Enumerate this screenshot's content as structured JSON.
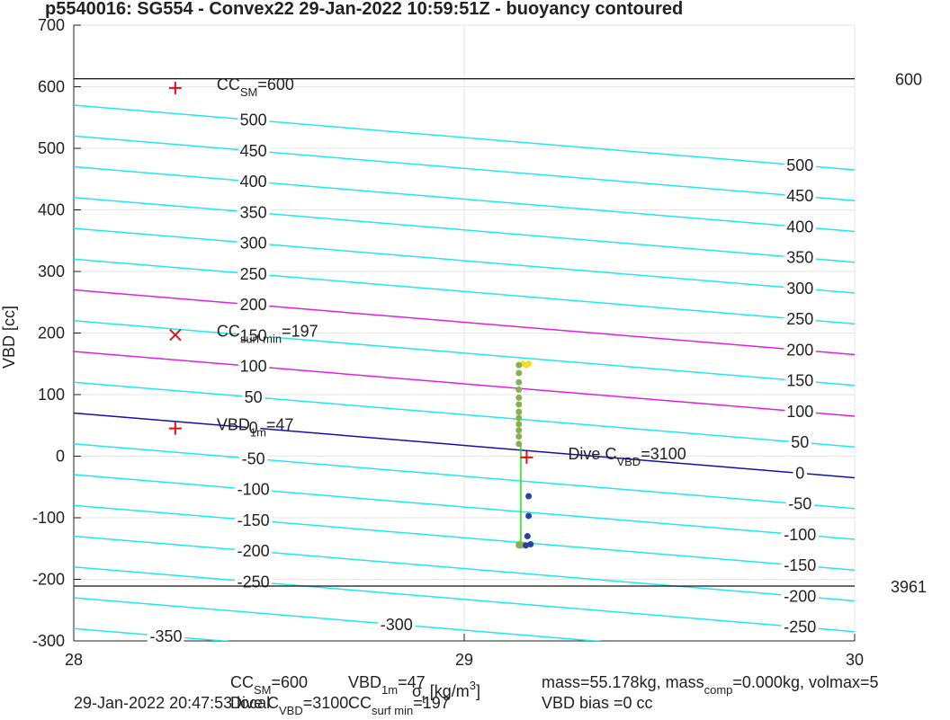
{
  "chart_data": {
    "type": "contour",
    "title": "p5540016: SG554 - Convex22 29-Jan-2022 10:59:51Z - buoyancy contoured",
    "ylabel": "VBD [cc]",
    "xlabel": {
      "parts": [
        {
          "text": "σ"
        },
        {
          "sub": "t"
        },
        {
          "text": " [kg/m"
        },
        {
          "sup": "3"
        },
        {
          "text": "]"
        }
      ]
    },
    "xlim": [
      28,
      30
    ],
    "xticks": [
      28,
      29,
      30
    ],
    "ylim": [
      -300,
      700
    ],
    "yticks": [
      -300,
      -200,
      -100,
      0,
      100,
      200,
      300,
      400,
      500,
      600,
      700
    ],
    "grid": true,
    "contour_x": [
      28,
      30
    ],
    "contours": [
      {
        "level": 500,
        "color": "#1ee8f0",
        "values": [
          570,
          465
        ]
      },
      {
        "level": 450,
        "color": "#1ee8f0",
        "values": [
          520,
          415
        ]
      },
      {
        "level": 400,
        "color": "#1ee8f0",
        "values": [
          470,
          365
        ]
      },
      {
        "level": 350,
        "color": "#1ee8f0",
        "values": [
          420,
          315
        ]
      },
      {
        "level": 300,
        "color": "#1ee8f0",
        "values": [
          370,
          265
        ]
      },
      {
        "level": 250,
        "color": "#1ee8f0",
        "values": [
          320,
          215
        ]
      },
      {
        "level": 200,
        "color": "#e020e0",
        "values": [
          270,
          165
        ]
      },
      {
        "level": 150,
        "color": "#1ee8f0",
        "values": [
          220,
          115
        ]
      },
      {
        "level": 100,
        "color": "#e020e0",
        "values": [
          170,
          65
        ]
      },
      {
        "level": 50,
        "color": "#1ee8f0",
        "values": [
          120,
          15
        ]
      },
      {
        "level": 0,
        "color": "#1010b0",
        "values": [
          70,
          -35
        ]
      },
      {
        "level": -50,
        "color": "#1ee8f0",
        "values": [
          20,
          -85
        ]
      },
      {
        "level": -100,
        "color": "#1ee8f0",
        "values": [
          -30,
          -135
        ]
      },
      {
        "level": -150,
        "color": "#1ee8f0",
        "values": [
          -80,
          -185
        ]
      },
      {
        "level": -200,
        "color": "#1ee8f0",
        "values": [
          -130,
          -235
        ]
      },
      {
        "level": -250,
        "color": "#1ee8f0",
        "values": [
          -180,
          -285
        ]
      },
      {
        "level": -300,
        "color": "#1ee8f0",
        "values": [
          -230,
          -335
        ]
      },
      {
        "level": -350,
        "color": "#1ee8f0",
        "values": [
          -280,
          -385
        ]
      }
    ],
    "ref_lines": [
      {
        "value": 613,
        "label": "600"
      },
      {
        "value": -211,
        "label": "3961"
      }
    ],
    "markers": [
      {
        "x": 28.26,
        "y": 598,
        "symbol": "+",
        "parts": [
          {
            "text": "CC"
          },
          {
            "sub": "SM"
          },
          {
            "text": "=600"
          }
        ]
      },
      {
        "x": 28.26,
        "y": 197,
        "symbol": "x",
        "parts": [
          {
            "text": "CC"
          },
          {
            "sub": "surf min"
          },
          {
            "text": "=197"
          }
        ]
      },
      {
        "x": 28.26,
        "y": 45,
        "symbol": "+",
        "parts": [
          {
            "text": "VBD"
          },
          {
            "sub": "1m"
          },
          {
            "text": "=47"
          }
        ]
      },
      {
        "x": 29.16,
        "y": -2,
        "symbol": "+",
        "parts": [
          {
            "text": "Dive C"
          },
          {
            "sub": "VBD"
          },
          {
            "text": "=3100"
          }
        ]
      }
    ],
    "profile_line": {
      "color": "#22dd22",
      "x": [
        29.145,
        29.145
      ],
      "values": [
        20,
        -145
      ]
    },
    "points": [
      {
        "color": "#f0e020",
        "x": [
          29.15,
          29.16,
          29.165
        ],
        "values": [
          150,
          148,
          150
        ]
      },
      {
        "color": "#86b14e",
        "x": [
          29.14,
          29.14,
          29.14,
          29.14,
          29.14,
          29.14,
          29.14,
          29.14,
          29.14,
          29.14,
          29.14,
          29.14,
          29.14,
          29.14,
          29.145,
          29.15
        ],
        "values": [
          148,
          135,
          120,
          108,
          95,
          84,
          72,
          62,
          52,
          42,
          32,
          20,
          -143,
          -145,
          -145,
          -144
        ]
      },
      {
        "color": "#2b3fa8",
        "x": [
          29.165,
          29.165,
          29.162,
          29.17,
          29.158
        ],
        "values": [
          -65,
          -97,
          -130,
          -143,
          -145
        ]
      }
    ],
    "footer": [
      {
        "parts": [
          {
            "text": "CC"
          },
          {
            "sub": "SM"
          },
          {
            "text": "=600"
          }
        ]
      },
      {
        "parts": [
          {
            "text": "VBD"
          },
          {
            "sub": "1m"
          },
          {
            "text": "=47"
          }
        ]
      },
      {
        "parts": [
          {
            "text": "mass=55.178kg, mass"
          },
          {
            "sub": "comp"
          },
          {
            "text": "=0.000kg, volmax=5"
          }
        ]
      },
      {
        "parts": [
          {
            "text": "29-Jan-2022 20:47:53 local"
          }
        ]
      },
      {
        "parts": [
          {
            "text": "Dive C"
          },
          {
            "sub": "VBD"
          },
          {
            "text": "=3100"
          }
        ]
      },
      {
        "parts": [
          {
            "text": "CC"
          },
          {
            "sub": "surf min"
          },
          {
            "text": "=197"
          }
        ]
      },
      {
        "parts": [
          {
            "text": "VBD bias =0 cc"
          }
        ]
      }
    ]
  }
}
